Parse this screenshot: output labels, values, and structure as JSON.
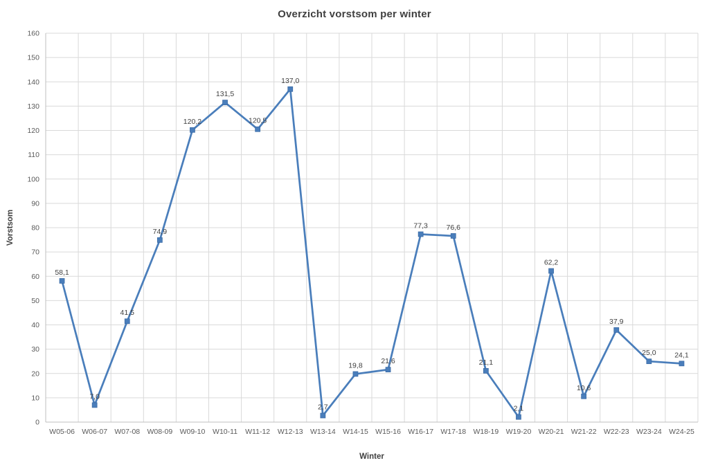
{
  "chart_data": {
    "type": "line",
    "title": "Overzicht vorstsom per winter",
    "xlabel": "Winter",
    "ylabel": "Vorstsom",
    "categories": [
      "W05-06",
      "W06-07",
      "W07-08",
      "W08-09",
      "W09-10",
      "W10-11",
      "W11-12",
      "W12-13",
      "W13-14",
      "W14-15",
      "W15-16",
      "W16-17",
      "W17-18",
      "W18-19",
      "W19-20",
      "W20-21",
      "W21-22",
      "W22-23",
      "W23-24",
      "W24-25"
    ],
    "values": [
      58.1,
      7.0,
      41.5,
      74.9,
      120.2,
      131.5,
      120.5,
      137.0,
      2.7,
      19.8,
      21.6,
      77.3,
      76.6,
      21.1,
      2.1,
      62.2,
      10.6,
      37.9,
      25.0,
      24.1
    ],
    "data_labels": [
      "58,1",
      "7,0",
      "41,5",
      "74,9",
      "120,2",
      "131,5",
      "120,5",
      "137,0",
      "2,7",
      "19,8",
      "21,6",
      "77,3",
      "76,6",
      "21,1",
      "2,1",
      "62,2",
      "10,6",
      "37,9",
      "25,0",
      "24,1"
    ],
    "ylim": [
      0,
      160
    ],
    "ytick_step": 10,
    "grid": true,
    "legend": "none",
    "marker": "square",
    "colors": {
      "line": "#4a7ebb",
      "marker_stroke": "#3a6aa5",
      "gridline": "#d9d9d9",
      "axis_line": "#bfbfbf",
      "tick_text": "#595959",
      "label_text": "#404040",
      "title_text": "#404040"
    }
  }
}
